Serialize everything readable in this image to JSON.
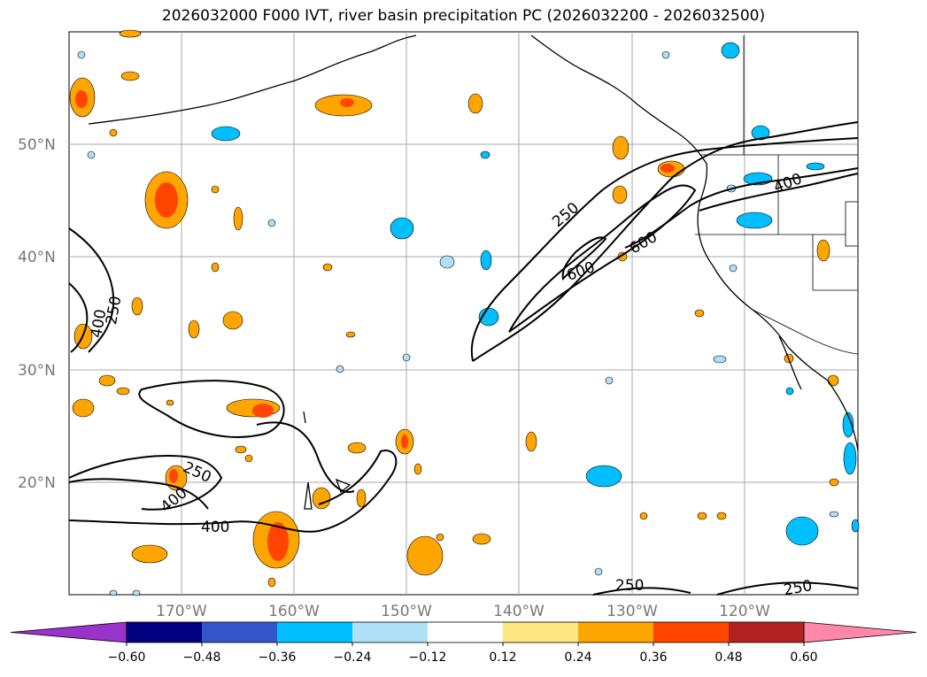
{
  "title": "2026032000 F000 IVT, river basin precipitation PC (2026032200 - 2026032500)",
  "lat_labels": [
    "50°N",
    "40°N",
    "30°N",
    "20°N"
  ],
  "lon_labels": [
    "170°W",
    "160°W",
    "150°W",
    "140°W",
    "130°W",
    "120°W"
  ],
  "ivt_contour_labels": [
    "250",
    "400",
    "600",
    "600",
    "250",
    "400",
    "250",
    "400",
    "400",
    "250",
    "250"
  ],
  "colorbar": {
    "ticks": [
      "−0.60",
      "−0.48",
      "−0.36",
      "−0.24",
      "−0.12",
      "0.12",
      "0.24",
      "0.36",
      "0.48",
      "0.60"
    ],
    "colors": [
      "#9933cc",
      "#000080",
      "#3355cc",
      "#00bfff",
      "#aee0f8",
      "#ffffff",
      "#ffe680",
      "#ffa500",
      "#ff4500",
      "#b22222",
      "#ff88aa"
    ]
  }
}
